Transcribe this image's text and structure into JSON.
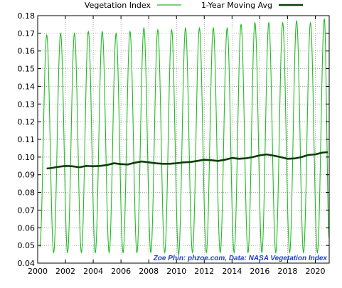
{
  "chart_data": {
    "type": "line",
    "title": "",
    "xlabel": "",
    "ylabel": "",
    "xlim": [
      2000,
      2021
    ],
    "ylim": [
      0.04,
      0.18
    ],
    "grid": true,
    "legend": {
      "placement": "top"
    },
    "x_ticks": [
      {
        "value": 2000,
        "label": "2000"
      },
      {
        "value": 2002,
        "label": "2002"
      },
      {
        "value": 2004,
        "label": "2004"
      },
      {
        "value": 2006,
        "label": "2006"
      },
      {
        "value": 2008,
        "label": "2008"
      },
      {
        "value": 2010,
        "label": "2010"
      },
      {
        "value": 2012,
        "label": "2012"
      },
      {
        "value": 2014,
        "label": "2014"
      },
      {
        "value": 2016,
        "label": "2016"
      },
      {
        "value": 2018,
        "label": "2018"
      },
      {
        "value": 2020,
        "label": "2020"
      }
    ],
    "y_ticks": [
      {
        "value": 0.04,
        "label": "0.04"
      },
      {
        "value": 0.05,
        "label": "0.05"
      },
      {
        "value": 0.06,
        "label": "0.06"
      },
      {
        "value": 0.07,
        "label": "0.07"
      },
      {
        "value": 0.08,
        "label": "0.08"
      },
      {
        "value": 0.09,
        "label": "0.09"
      },
      {
        "value": 0.1,
        "label": "0.10"
      },
      {
        "value": 0.11,
        "label": "0.11"
      },
      {
        "value": 0.12,
        "label": "0.12"
      },
      {
        "value": 0.13,
        "label": "0.13"
      },
      {
        "value": 0.14,
        "label": "0.14"
      },
      {
        "value": 0.15,
        "label": "0.15"
      },
      {
        "value": 0.16,
        "label": "0.16"
      },
      {
        "value": 0.17,
        "label": "0.17"
      },
      {
        "value": 0.18,
        "label": "0.18"
      }
    ],
    "annotation": "Zoe Phin: phzoe.com, Data: NASA Vegetation Index",
    "series": [
      {
        "name": "Vegetation Index",
        "color": "#22bb22",
        "start": 2000.15,
        "end": 2021.0,
        "peaks": [
          {
            "x": 2000.65,
            "y": 0.169
          },
          {
            "x": 2001.65,
            "y": 0.17
          },
          {
            "x": 2002.65,
            "y": 0.17
          },
          {
            "x": 2003.65,
            "y": 0.171
          },
          {
            "x": 2004.65,
            "y": 0.171
          },
          {
            "x": 2005.65,
            "y": 0.17
          },
          {
            "x": 2006.65,
            "y": 0.171
          },
          {
            "x": 2007.65,
            "y": 0.173
          },
          {
            "x": 2008.65,
            "y": 0.172
          },
          {
            "x": 2009.65,
            "y": 0.172
          },
          {
            "x": 2010.65,
            "y": 0.173
          },
          {
            "x": 2011.65,
            "y": 0.173
          },
          {
            "x": 2012.65,
            "y": 0.173
          },
          {
            "x": 2013.65,
            "y": 0.173
          },
          {
            "x": 2014.65,
            "y": 0.175
          },
          {
            "x": 2015.65,
            "y": 0.176
          },
          {
            "x": 2016.65,
            "y": 0.176
          },
          {
            "x": 2017.65,
            "y": 0.176
          },
          {
            "x": 2018.65,
            "y": 0.177
          },
          {
            "x": 2019.65,
            "y": 0.176
          },
          {
            "x": 2020.65,
            "y": 0.178
          }
        ],
        "troughs": [
          {
            "x": 2000.15,
            "y": 0.049
          },
          {
            "x": 2001.15,
            "y": 0.046
          },
          {
            "x": 2002.15,
            "y": 0.046
          },
          {
            "x": 2003.15,
            "y": 0.046
          },
          {
            "x": 2004.15,
            "y": 0.046
          },
          {
            "x": 2005.15,
            "y": 0.046
          },
          {
            "x": 2006.15,
            "y": 0.046
          },
          {
            "x": 2007.15,
            "y": 0.046
          },
          {
            "x": 2008.15,
            "y": 0.046
          },
          {
            "x": 2009.15,
            "y": 0.046
          },
          {
            "x": 2010.15,
            "y": 0.045
          },
          {
            "x": 2011.15,
            "y": 0.046
          },
          {
            "x": 2012.15,
            "y": 0.046
          },
          {
            "x": 2013.15,
            "y": 0.046
          },
          {
            "x": 2014.15,
            "y": 0.046
          },
          {
            "x": 2015.15,
            "y": 0.046
          },
          {
            "x": 2016.15,
            "y": 0.046
          },
          {
            "x": 2017.15,
            "y": 0.046
          },
          {
            "x": 2018.15,
            "y": 0.046
          },
          {
            "x": 2019.15,
            "y": 0.046
          },
          {
            "x": 2020.15,
            "y": 0.046
          },
          {
            "x": 2021.0,
            "y": 0.054
          }
        ]
      },
      {
        "name": "1-Year Moving Avg",
        "color": "#0a3d0a",
        "x": [
          2000.65,
          2001.0,
          2001.5,
          2002.0,
          2002.5,
          2003.0,
          2003.5,
          2004.0,
          2004.5,
          2005.0,
          2005.5,
          2006.0,
          2006.5,
          2007.0,
          2007.5,
          2008.0,
          2008.5,
          2009.0,
          2009.5,
          2010.0,
          2010.5,
          2011.0,
          2011.5,
          2012.0,
          2012.5,
          2013.0,
          2013.5,
          2014.0,
          2014.5,
          2015.0,
          2015.5,
          2016.0,
          2016.5,
          2017.0,
          2017.5,
          2018.0,
          2018.5,
          2019.0,
          2019.5,
          2020.0,
          2020.5,
          2020.9
        ],
        "y": [
          0.0935,
          0.0938,
          0.0945,
          0.095,
          0.0948,
          0.0942,
          0.095,
          0.0948,
          0.095,
          0.0955,
          0.0965,
          0.096,
          0.0958,
          0.0968,
          0.0975,
          0.097,
          0.0965,
          0.0962,
          0.0962,
          0.0965,
          0.097,
          0.0972,
          0.0978,
          0.0985,
          0.0982,
          0.0978,
          0.0985,
          0.0995,
          0.099,
          0.0993,
          0.1,
          0.101,
          0.1015,
          0.1008,
          0.1,
          0.099,
          0.0992,
          0.1,
          0.1012,
          0.1015,
          0.1025,
          0.1028
        ]
      }
    ]
  }
}
